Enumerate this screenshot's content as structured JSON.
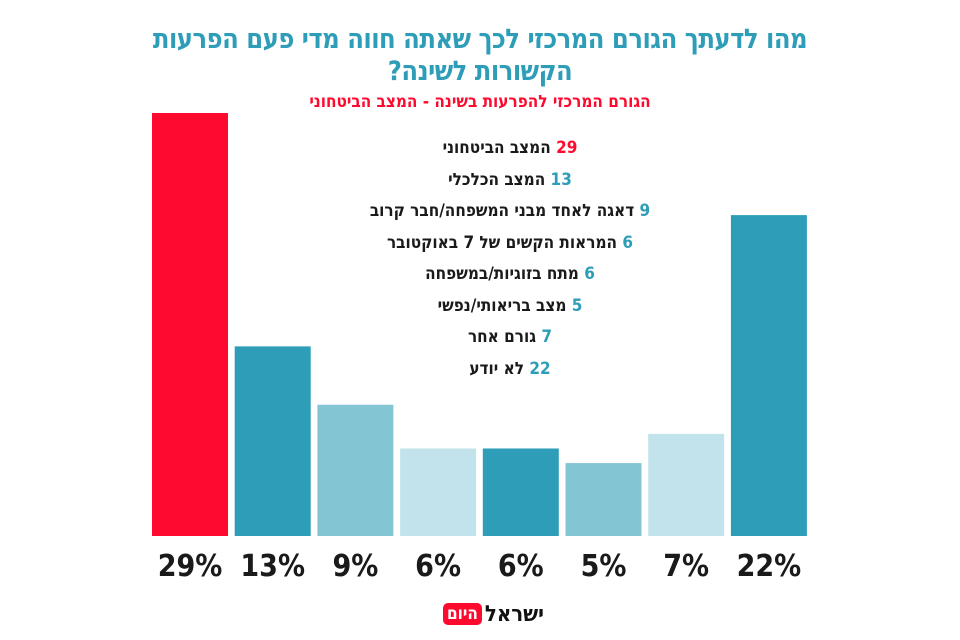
{
  "chart_data": {
    "type": "bar",
    "title": "מהו לדעתך הגורם המרכזי לכך שאתה חווה מדי פעם הפרעות הקשורות לשינה?",
    "subtitle": "הגורם המרכזי להפרעות בשינה - המצב הביטחוני",
    "categories": [
      "המצב הביטחוני",
      "המצב הכלכלי",
      "דאגה לאחד מבני המשפחה/חבר קרוב",
      "המראות הקשים של 7 באוקטובר",
      "מתח בזוגיות/במשפחה",
      "מצב בריאותי/נפשי",
      "גורם אחר",
      "לא יודע"
    ],
    "values": [
      29,
      13,
      9,
      6,
      6,
      5,
      7,
      22
    ],
    "value_labels": [
      "29%",
      "13%",
      "9%",
      "6%",
      "6%",
      "5%",
      "7%",
      "22%"
    ],
    "legend_numbers": [
      "29",
      "13",
      "9",
      "6",
      "6",
      "5",
      "7",
      "22"
    ],
    "colors": [
      "#ff0a2f",
      "#2e9db8",
      "#84c5d4",
      "#c2e3eb",
      "#2e9db8",
      "#84c5d4",
      "#c2e3eb",
      "#2e9db8"
    ],
    "ylim": [
      0,
      29
    ],
    "grid": false,
    "legend_placement": "top-center"
  },
  "logo": {
    "text_main": "ישראל",
    "text_badge": "היום"
  }
}
